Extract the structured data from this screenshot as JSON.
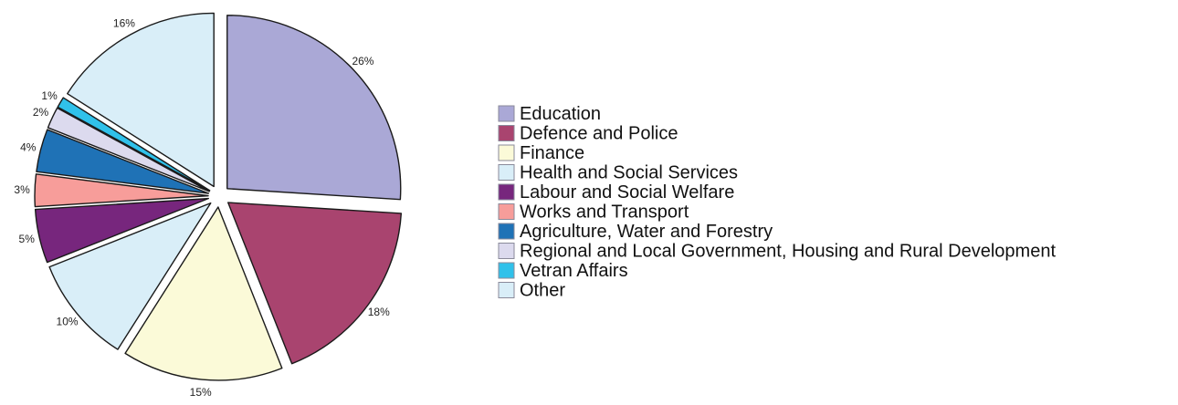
{
  "chart_data": {
    "type": "pie",
    "title": "",
    "legend_position": "right",
    "unit": "%",
    "exploded": true,
    "categories": [
      "Education",
      "Defence and Police",
      "Finance",
      "Health and Social Services",
      "Labour and Social Welfare",
      "Works and Transport",
      "Agriculture, Water and  Forestry",
      "Regional and Local Government, Housing and Rural Development",
      "Vetran Affairs",
      "Other"
    ],
    "values": [
      26,
      18,
      15,
      10,
      5,
      3,
      4,
      2,
      1,
      16
    ],
    "labels": [
      "26%",
      "18%",
      "15%",
      "10%",
      "5%",
      "3%",
      "4%",
      "2%",
      "1%",
      "16%"
    ],
    "colors": [
      "#aaa8d6",
      "#a9446f",
      "#fbfad8",
      "#d9eef8",
      "#77267d",
      "#f79d9a",
      "#1f72b6",
      "#dcdaee",
      "#30c1ea",
      "#d9eef8"
    ],
    "start_angle_deg": 0,
    "direction": "clockwise"
  }
}
